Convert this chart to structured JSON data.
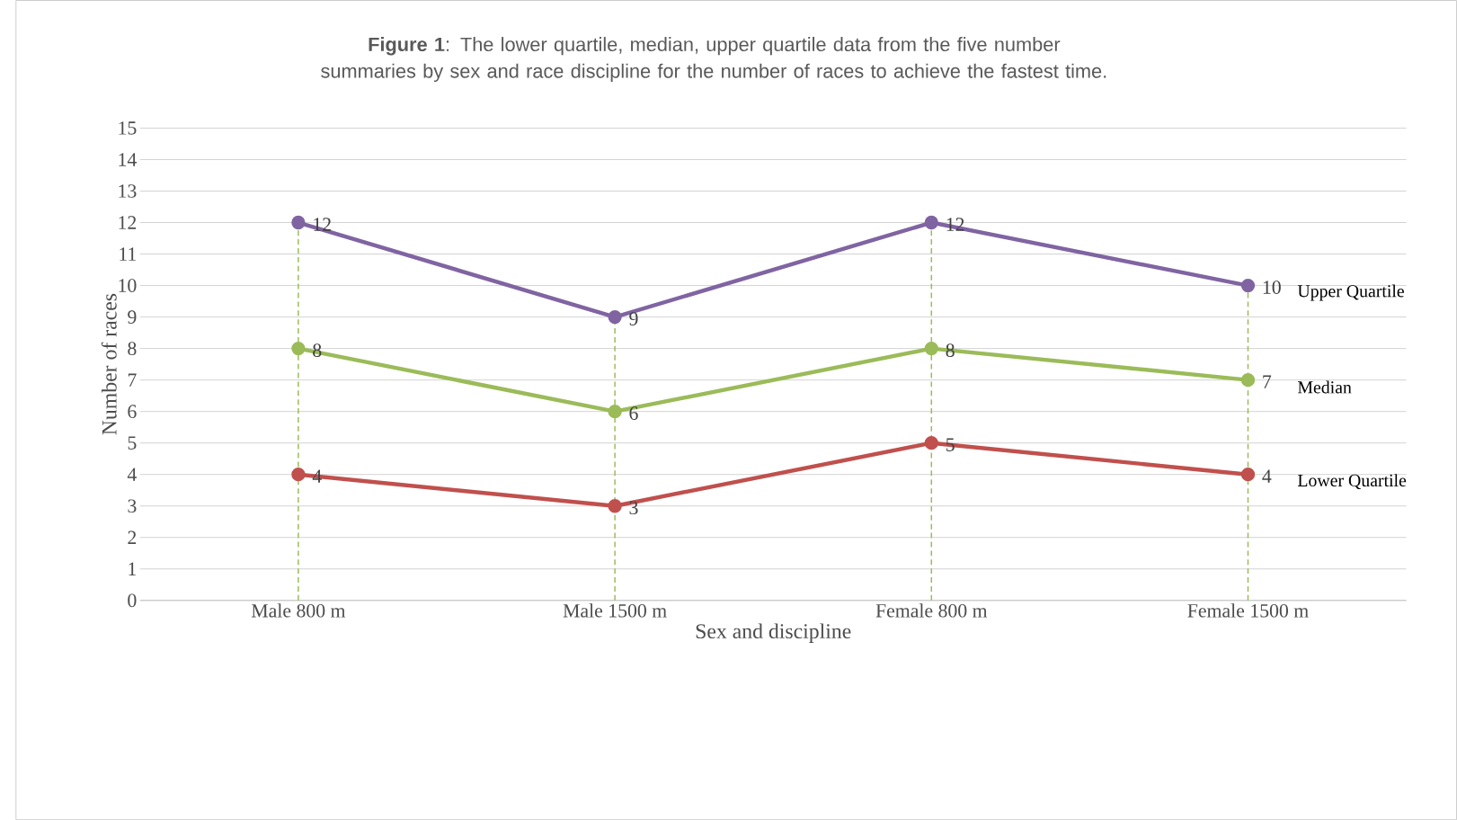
{
  "chart_data": {
    "type": "line",
    "title": "**Figure 1**: The lower quartile, median, upper quartile data from the five number summaries by sex and race discipline for the number of races to achieve the fastest time.",
    "xlabel": "Sex and discipline",
    "ylabel": "Number of races",
    "categories": [
      "Male 800 m",
      "Male 1500 m",
      "Female 800 m",
      "Female 1500 m"
    ],
    "series": [
      {
        "name": "Upper Quartile",
        "color": "#8064a2",
        "values": [
          12,
          9,
          12,
          10
        ]
      },
      {
        "name": "Median",
        "color": "#9bbb59",
        "values": [
          8,
          6,
          8,
          7
        ]
      },
      {
        "name": "Lower Quartile",
        "color": "#c0504d",
        "values": [
          4,
          3,
          5,
          4
        ]
      }
    ],
    "ylim": [
      0,
      15
    ],
    "yticks": [
      0,
      1,
      2,
      3,
      4,
      5,
      6,
      7,
      8,
      9,
      10,
      11,
      12,
      13,
      14,
      15
    ],
    "grid": "y",
    "marker": "circle",
    "line_style": "solid",
    "data_labels": true,
    "ref_lines": [
      {
        "axis": "x",
        "value": "Male 800 m",
        "color": "#9bbb59",
        "line_style": "dashed"
      },
      {
        "axis": "x",
        "value": "Male 1500 m",
        "color": "#9bbb59",
        "line_style": "dashed"
      },
      {
        "axis": "x",
        "value": "Female 800 m",
        "color": "#9bbb59",
        "line_style": "dashed"
      },
      {
        "axis": "x",
        "value": "Female 1500 m",
        "color": "#9bbb59",
        "line_style": "dashed"
      }
    ]
  }
}
